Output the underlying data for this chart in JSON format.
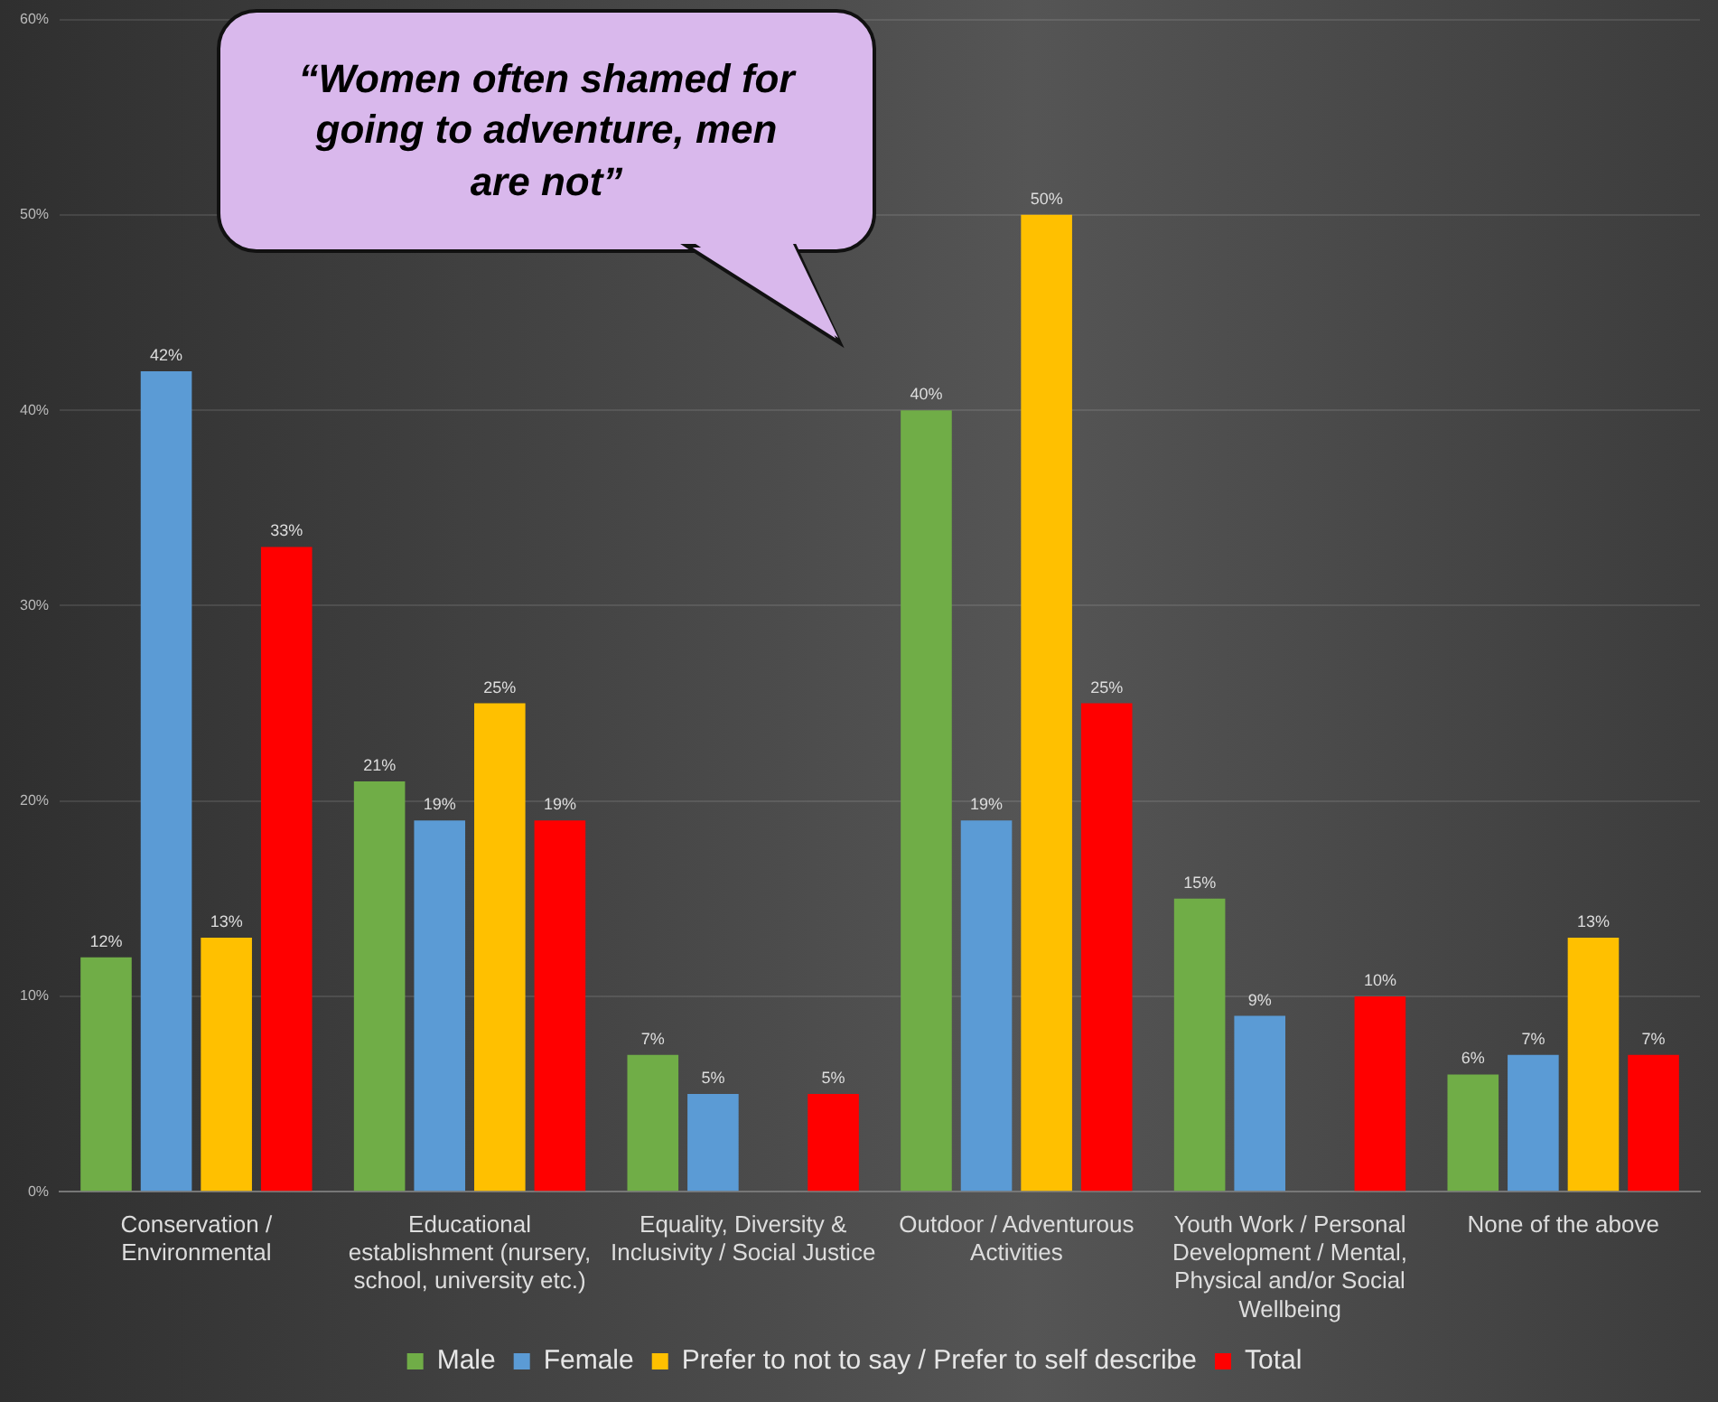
{
  "chart_data": {
    "type": "bar",
    "categories": [
      "Conservation / Environmental",
      "Educational establishment (nursery, school, university etc.)",
      "Equality, Diversity & Inclusivity / Social Justice",
      "Outdoor / Adventurous Activities",
      "Youth Work / Personal Development / Mental, Physical and/or Social Wellbeing",
      "None of the above"
    ],
    "series": [
      {
        "name": "Male",
        "color": "#70ad47",
        "values": [
          12,
          21,
          7,
          40,
          15,
          6
        ],
        "value_labels": [
          "12%",
          "21%",
          "7%",
          "40%",
          "15%",
          "6%"
        ]
      },
      {
        "name": "Female",
        "color": "#5b9bd5",
        "values": [
          42,
          19,
          5,
          19,
          9,
          7
        ],
        "value_labels": [
          "42%",
          "19%",
          "5%",
          "19%",
          "9%",
          "7%"
        ]
      },
      {
        "name": "Prefer to not to say / Prefer to self describe",
        "color": "#ffc000",
        "values": [
          13,
          25,
          null,
          50,
          null,
          13
        ],
        "value_labels": [
          "13%",
          "25%",
          null,
          "50%",
          null,
          "13%"
        ]
      },
      {
        "name": "Total",
        "color": "#ff0000",
        "values": [
          33,
          19,
          5,
          25,
          10,
          7
        ],
        "value_labels": [
          "33%",
          "19%",
          "5%",
          "25%",
          "10%",
          "7%"
        ]
      }
    ],
    "ylim": [
      0,
      60
    ],
    "yticks": [
      {
        "value": 0,
        "label": "0%"
      },
      {
        "value": 10,
        "label": "10%"
      },
      {
        "value": 20,
        "label": "20%"
      },
      {
        "value": 30,
        "label": "30%"
      },
      {
        "value": 40,
        "label": "40%"
      },
      {
        "value": 50,
        "label": "50%"
      },
      {
        "value": 60,
        "label": "60%"
      }
    ],
    "grid": "y",
    "legend": "bottom",
    "annotations": [
      "“Women often shamed for going to adventure, men are not”"
    ]
  }
}
